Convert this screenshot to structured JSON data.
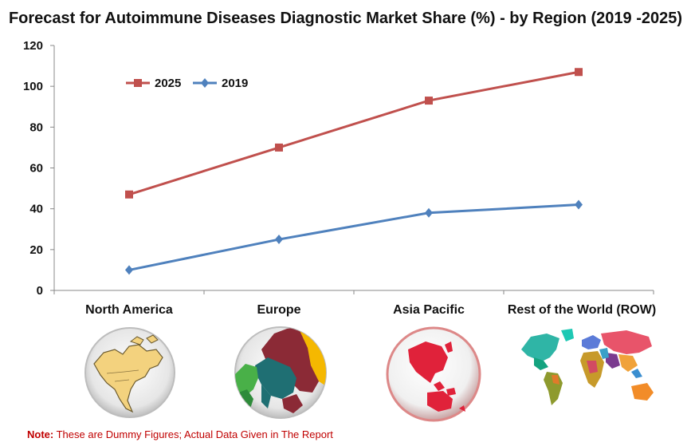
{
  "title": "Forecast for Autoimmune Diseases Diagnostic Market Share (%) - by Region (2019 -2025)",
  "note_label": "Note:",
  "note_text": "These are Dummy Figures; Actual Data Given in The Report",
  "chart_data": {
    "type": "line",
    "title": "Forecast for Autoimmune Diseases Diagnostic Market Share (%) - by Region (2019 -2025)",
    "categories": [
      "North America",
      "Europe",
      "Asia Pacific",
      "Rest of the World (ROW)"
    ],
    "series": [
      {
        "name": "2025",
        "values": [
          47,
          70,
          93,
          107
        ],
        "color": "#c0504d",
        "marker": "square"
      },
      {
        "name": "2019",
        "values": [
          10,
          25,
          38,
          42
        ],
        "color": "#4f81bd",
        "marker": "diamond"
      }
    ],
    "ylim": [
      0,
      120
    ],
    "yticks": [
      0,
      20,
      40,
      60,
      80,
      100,
      120
    ],
    "grid": false,
    "legend": "top-left"
  },
  "maps": [
    {
      "region": "North America",
      "icon": "north-america-map-icon"
    },
    {
      "region": "Europe",
      "icon": "europe-map-icon"
    },
    {
      "region": "Asia Pacific",
      "icon": "asia-pacific-map-icon"
    },
    {
      "region": "Rest of the World (ROW)",
      "icon": "world-map-icon"
    }
  ]
}
